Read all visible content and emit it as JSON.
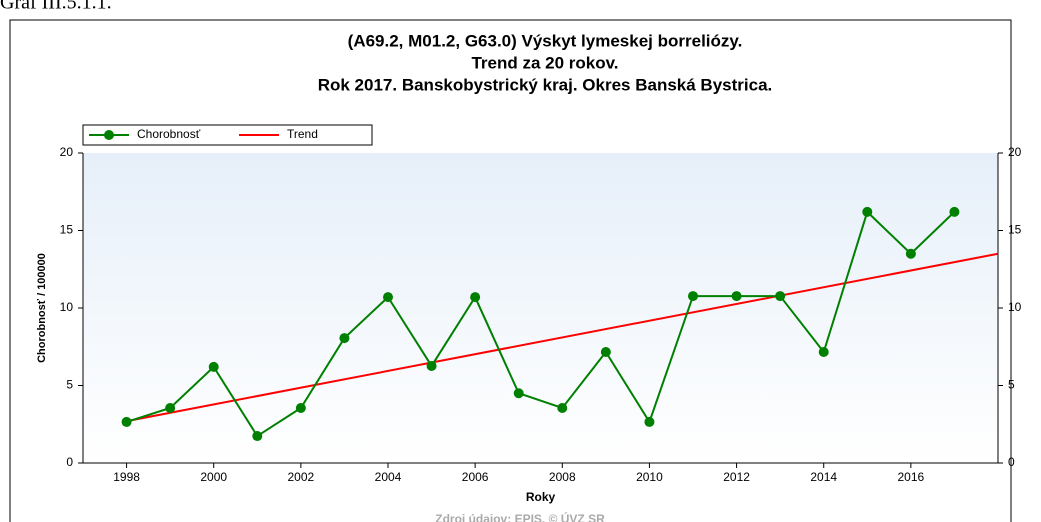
{
  "caption": "Graf III.5.1.1.",
  "source": "Zdroj údajov: EPIS, © ÚVZ SR",
  "chart_data": {
    "type": "line",
    "title": [
      "(A69.2, M01.2, G63.0) Výskyt lymeskej borreliózy.",
      "Trend za 20 rokov.",
      "Rok 2017. Banskobystrický kraj. Okres Banská Bystrica."
    ],
    "xlabel": "Roky",
    "ylabel": "Chorobnosť / 100000",
    "x": [
      1998,
      1999,
      2000,
      2001,
      2002,
      2003,
      2004,
      2005,
      2006,
      2007,
      2008,
      2009,
      2010,
      2011,
      2012,
      2013,
      2014,
      2015,
      2016,
      2017
    ],
    "series": [
      {
        "name": "Chorobnosť",
        "color": "#008000",
        "marker": true,
        "values": [
          2.65,
          3.55,
          6.2,
          1.74,
          3.55,
          8.06,
          10.7,
          6.26,
          10.7,
          4.5,
          3.55,
          7.16,
          2.65,
          10.77,
          10.77,
          10.77,
          7.16,
          16.2,
          13.5,
          16.2
        ]
      },
      {
        "name": "Trend",
        "color": "#ff0000",
        "marker": false,
        "x": [
          1998,
          2018
        ],
        "values": [
          2.7,
          13.5
        ]
      }
    ],
    "xlim": [
      1997,
      2018
    ],
    "xticks": [
      1998,
      2000,
      2002,
      2004,
      2006,
      2008,
      2010,
      2012,
      2014,
      2016
    ],
    "ylim": [
      0,
      20
    ],
    "yticks": [
      0,
      5,
      10,
      15,
      20
    ],
    "y2lim": [
      0,
      20
    ],
    "y2ticks": [
      0,
      5,
      10,
      15,
      20
    ],
    "legend": "top-left"
  }
}
